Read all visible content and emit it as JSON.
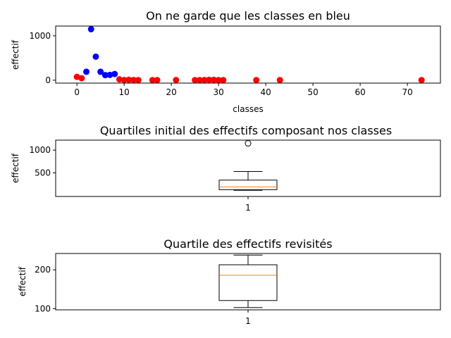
{
  "chart_data": [
    {
      "type": "scatter",
      "title": "On ne garde que les classes en bleu",
      "xlabel": "classes",
      "ylabel": "effectif",
      "xlim": [
        -4.5,
        77
      ],
      "ylim": [
        -65,
        1220
      ],
      "xticks": [
        0,
        10,
        20,
        30,
        40,
        50,
        60,
        70
      ],
      "yticks": [
        0,
        1000
      ],
      "grid": false,
      "colors": {
        "kept": "#0000ff",
        "dropped": "#ff0000"
      },
      "points": [
        {
          "x": 0,
          "y": 75,
          "kept": false
        },
        {
          "x": 1,
          "y": 45,
          "kept": false
        },
        {
          "x": 2,
          "y": 190,
          "kept": true
        },
        {
          "x": 3,
          "y": 1150,
          "kept": true
        },
        {
          "x": 4,
          "y": 530,
          "kept": true
        },
        {
          "x": 5,
          "y": 190,
          "kept": true
        },
        {
          "x": 6,
          "y": 115,
          "kept": true
        },
        {
          "x": 7,
          "y": 120,
          "kept": true
        },
        {
          "x": 8,
          "y": 140,
          "kept": true
        },
        {
          "x": 9,
          "y": 20,
          "kept": false
        },
        {
          "x": 10,
          "y": 5,
          "kept": false
        },
        {
          "x": 11,
          "y": 10,
          "kept": false
        },
        {
          "x": 12,
          "y": 5,
          "kept": false
        },
        {
          "x": 13,
          "y": 3,
          "kept": false
        },
        {
          "x": 16,
          "y": 3,
          "kept": false
        },
        {
          "x": 17,
          "y": 3,
          "kept": false
        },
        {
          "x": 21,
          "y": 5,
          "kept": false
        },
        {
          "x": 25,
          "y": 3,
          "kept": false
        },
        {
          "x": 26,
          "y": 3,
          "kept": false
        },
        {
          "x": 27,
          "y": 5,
          "kept": false
        },
        {
          "x": 28,
          "y": 8,
          "kept": false
        },
        {
          "x": 29,
          "y": 8,
          "kept": false
        },
        {
          "x": 30,
          "y": 3,
          "kept": false
        },
        {
          "x": 31,
          "y": 3,
          "kept": false
        },
        {
          "x": 38,
          "y": 3,
          "kept": false
        },
        {
          "x": 43,
          "y": 3,
          "kept": false
        },
        {
          "x": 73,
          "y": 3,
          "kept": false
        }
      ]
    },
    {
      "type": "box",
      "title": "Quartiles initial des effectifs composant nos classes",
      "ylabel": "effectif",
      "xticklabels": [
        "1"
      ],
      "ylim": [
        -20,
        1220
      ],
      "yticks": [
        500,
        1000
      ],
      "grid": false,
      "median_color": "#ff7f0e",
      "box": {
        "whisker_low": 115,
        "q1": 130,
        "median": 190,
        "q3": 340,
        "whisker_high": 530,
        "outliers": [
          1150
        ]
      }
    },
    {
      "type": "box",
      "title": "Quartile des effectifs revisités",
      "ylabel": "effectif",
      "xticklabels": [
        "1"
      ],
      "ylim": [
        97,
        242
      ],
      "yticks": [
        100,
        200
      ],
      "grid": false,
      "median_color": "#ff7f0e",
      "box": {
        "whisker_low": 103,
        "q1": 121,
        "median": 186,
        "q3": 213,
        "whisker_high": 238,
        "outliers": []
      }
    }
  ]
}
